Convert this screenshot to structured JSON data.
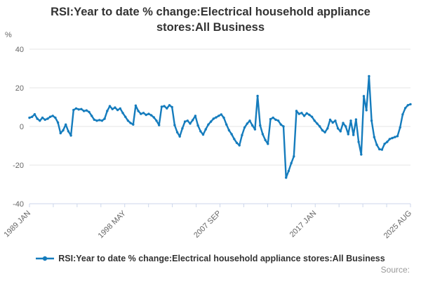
{
  "title": "RSI:Year to date % change:Electrical household appliance stores:All Business",
  "y_axis": {
    "unit_label": "%",
    "ticks": [
      40,
      20,
      0,
      -20,
      -40
    ],
    "min": -40,
    "max": 40
  },
  "x_axis": {
    "tick_labels": [
      "1989 JAN",
      "1998 MAY",
      "2007 SEP",
      "2017 JAN",
      "2025 AUG"
    ],
    "minor_ticks_between_labels": 3
  },
  "legend": {
    "label": "RSI:Year to date % change:Electrical household appliance stores:All Business"
  },
  "source_label": "Source:",
  "colors": {
    "series": "#157cbd",
    "gridline": "#e6e6e6",
    "axis_line": "#ccd6eb",
    "tick_text": "#666666",
    "title_text": "#333333",
    "source_text": "#999999"
  },
  "chart_data": {
    "type": "line",
    "title": "RSI:Year to date % change:Electrical household appliance stores:All Business",
    "xlabel": "",
    "ylabel": "%",
    "ylim": [
      -40,
      40
    ],
    "grid": true,
    "legend_position": "bottom",
    "xtick_labels": [
      "1989 JAN",
      "1998 MAY",
      "2007 SEP",
      "2017 JAN",
      "2025 AUG"
    ],
    "series": [
      {
        "name": "RSI:Year to date % change:Electrical household appliance stores:All Business",
        "color": "#157cbd",
        "x_start": "1989 JAN",
        "x_end": "2025 AUG",
        "interval_months": 3,
        "values": [
          4.5,
          5.0,
          6.3,
          4.0,
          3.0,
          4.5,
          3.5,
          4.0,
          5.0,
          5.5,
          4.5,
          2.0,
          -3.5,
          -2.0,
          1.0,
          -2.5,
          -4.7,
          8.5,
          9.3,
          8.8,
          9.0,
          8.0,
          8.3,
          7.5,
          5.5,
          3.5,
          3.0,
          3.3,
          3.0,
          4.0,
          8.0,
          10.5,
          9.0,
          9.8,
          8.5,
          9.3,
          7.0,
          5.0,
          3.0,
          1.8,
          1.0,
          10.8,
          8.0,
          6.5,
          7.0,
          6.0,
          6.5,
          5.8,
          4.7,
          3.0,
          0.7,
          10.2,
          10.5,
          9.4,
          11.0,
          10.0,
          0.7,
          -3.0,
          -5.2,
          -1.0,
          2.5,
          3.0,
          1.5,
          3.3,
          5.5,
          0.5,
          -2.5,
          -4.2,
          -1.5,
          1.0,
          2.5,
          4.0,
          4.7,
          5.5,
          6.2,
          4.5,
          1.0,
          -2.0,
          -4.0,
          -6.5,
          -8.5,
          -9.8,
          -4.5,
          -0.5,
          1.5,
          3.0,
          0.5,
          -1.5,
          15.8,
          0.5,
          -4.0,
          -7.0,
          -9.0,
          3.8,
          4.5,
          3.5,
          3.0,
          1.0,
          0.0,
          -26.5,
          -23.0,
          -19.0,
          -15.5,
          8.0,
          6.5,
          7.0,
          5.5,
          6.8,
          6.0,
          5.0,
          3.0,
          1.5,
          0.0,
          -2.0,
          -3.0,
          -1.0,
          3.5,
          2.0,
          3.0,
          -1.0,
          -2.5,
          1.8,
          0.0,
          -4.0,
          3.0,
          -4.4,
          3.6,
          -8.0,
          -14.5,
          15.7,
          8.4,
          26.0,
          3.0,
          -5.5,
          -9.5,
          -11.8,
          -12.0,
          -9.0,
          -8.0,
          -6.5,
          -6.0,
          -5.5,
          -5.0,
          -0.5,
          6.2,
          9.5,
          11.0,
          11.5
        ]
      }
    ]
  }
}
